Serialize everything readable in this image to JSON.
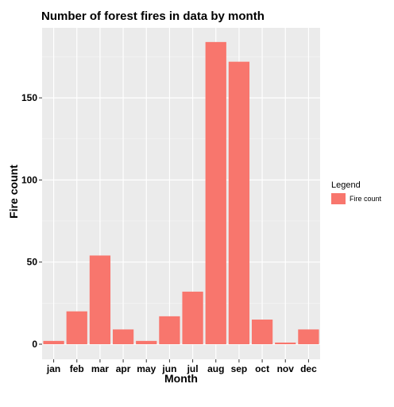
{
  "chart_data": {
    "type": "bar",
    "title": "Number of forest fires in data by month",
    "xlabel": "Month",
    "ylabel": "Fire count",
    "categories": [
      "jan",
      "feb",
      "mar",
      "apr",
      "may",
      "jun",
      "jul",
      "aug",
      "sep",
      "oct",
      "nov",
      "dec"
    ],
    "series": [
      {
        "name": "Fire count",
        "values": [
          2,
          20,
          54,
          9,
          2,
          17,
          32,
          184,
          172,
          15,
          1,
          9
        ]
      }
    ],
    "ylim": [
      0,
      193
    ],
    "yticks": [
      0,
      50,
      100,
      150
    ],
    "legend": {
      "title": "Legend",
      "placement": "right"
    },
    "grid": true,
    "colors": {
      "bar": "#F8766D",
      "panel": "#EBEBEB",
      "grid_major": "#FFFFFF",
      "grid_minor": "#F5F5F5"
    }
  }
}
